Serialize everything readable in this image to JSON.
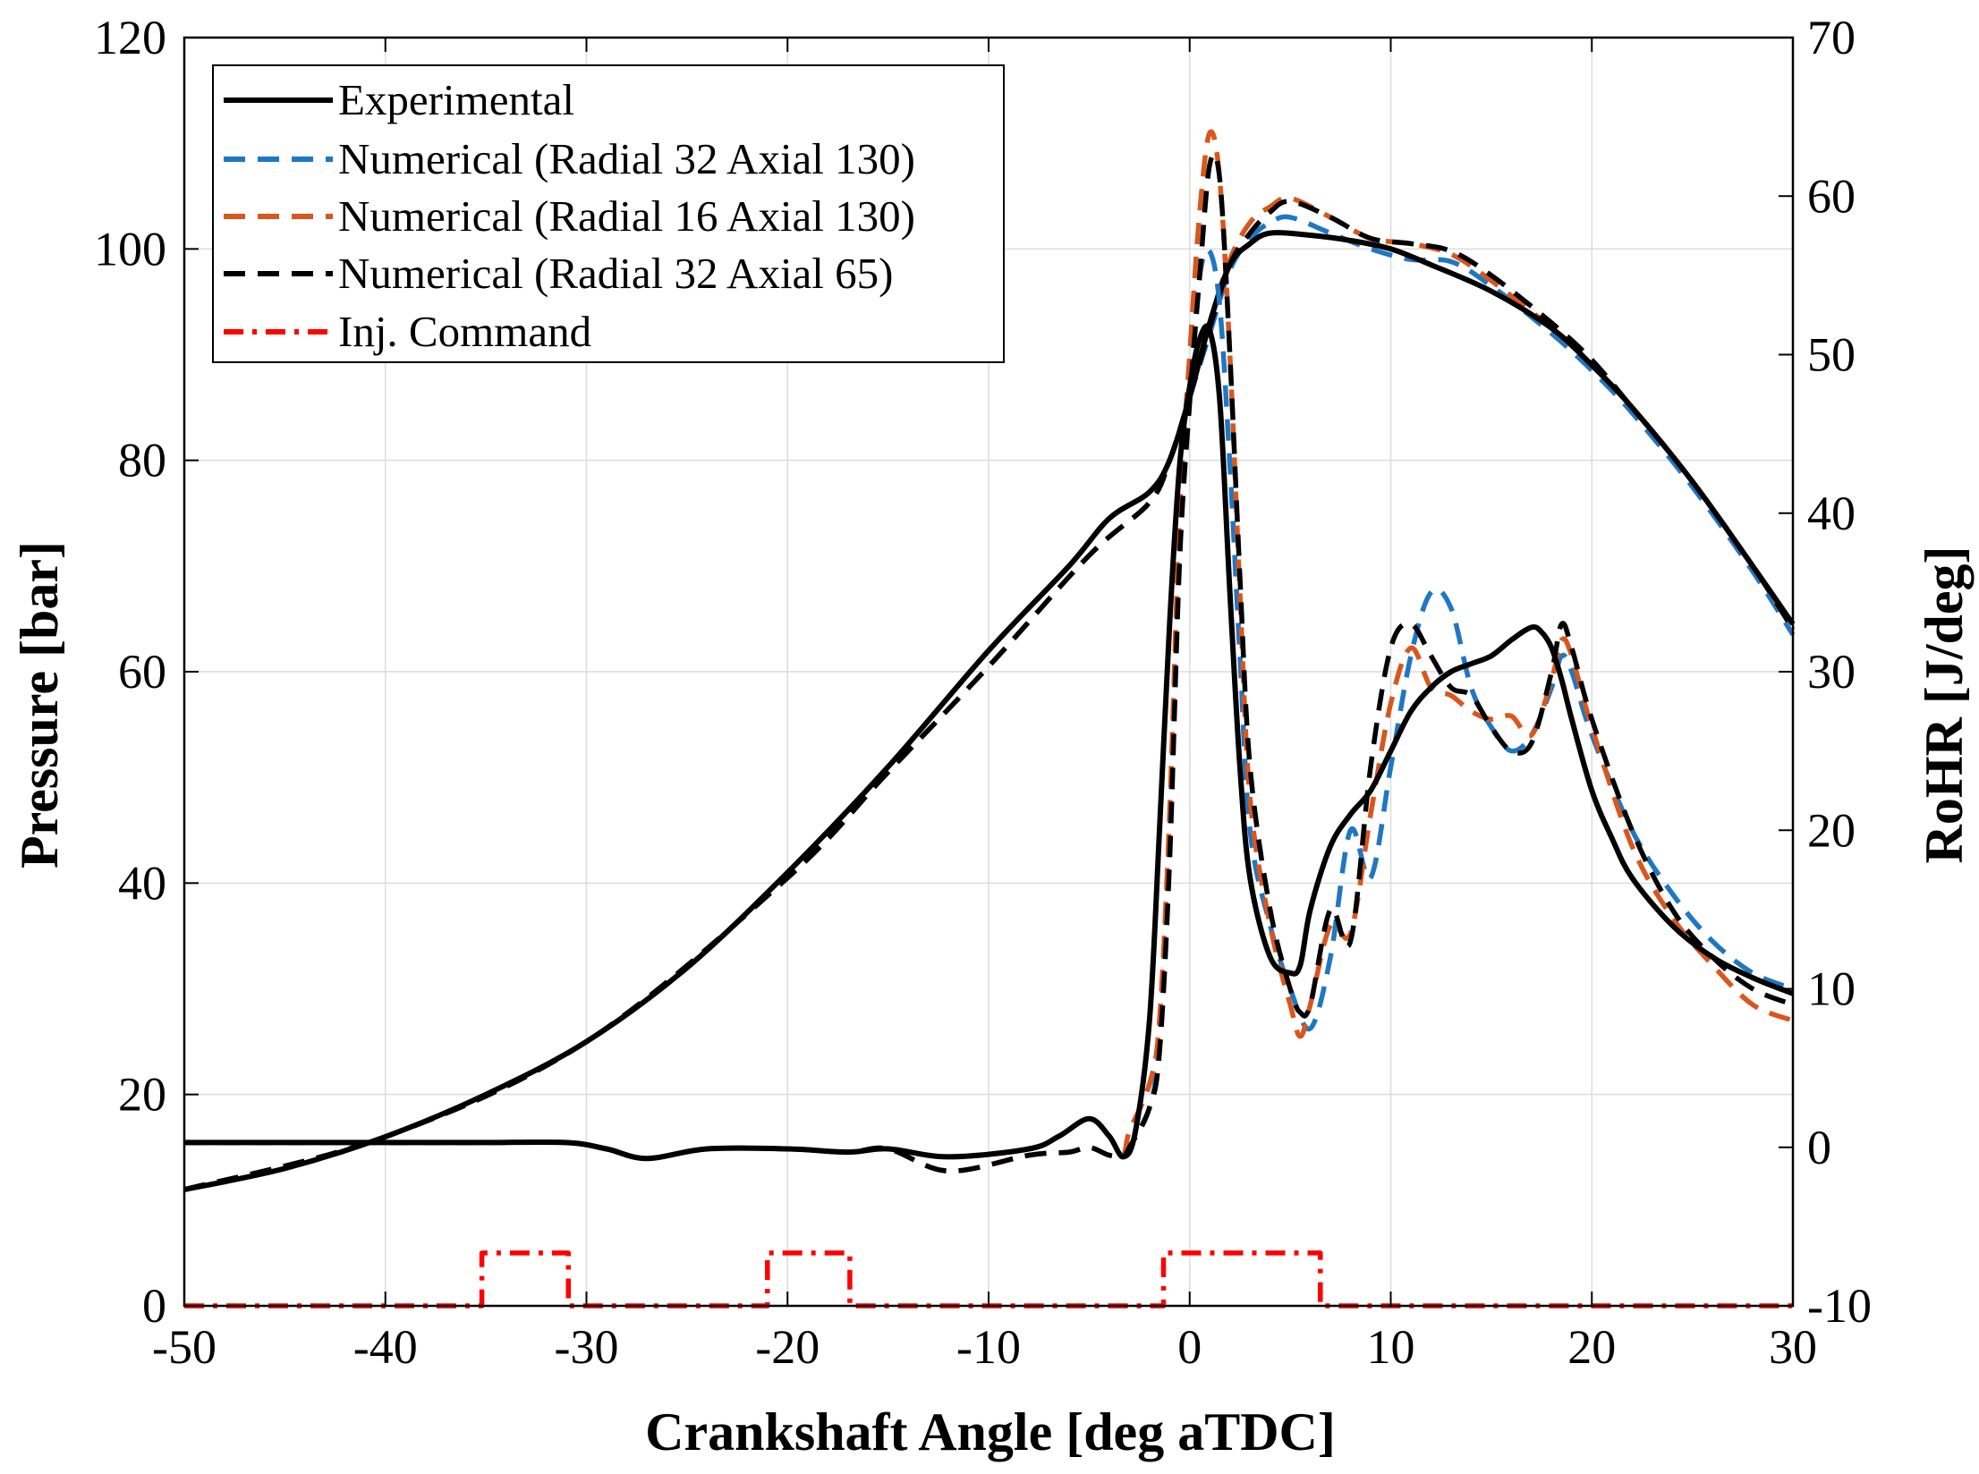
{
  "chart_data": {
    "type": "line",
    "xlabel": "Crankshaft Angle [deg aTDC]",
    "ylabel_left": "Pressure [bar]",
    "ylabel_right": "RoHR [J/deg]",
    "xlim": [
      -50,
      30
    ],
    "ylim_left": [
      0,
      120
    ],
    "ylim_right": [
      -10,
      70
    ],
    "xticks": [
      -50,
      -40,
      -30,
      -20,
      -10,
      0,
      10,
      20,
      30
    ],
    "yticks_left": [
      0,
      20,
      40,
      60,
      80,
      100,
      120
    ],
    "yticks_right": [
      -10,
      0,
      10,
      20,
      30,
      40,
      50,
      60,
      70
    ],
    "grid": true,
    "legend_position": "top-left",
    "legend": [
      {
        "label": "Experimental",
        "color": "#000000",
        "style": "solid"
      },
      {
        "label": "Numerical (Radial 32 Axial 130)",
        "color": "#1f77c4",
        "style": "dashed"
      },
      {
        "label": "Numerical (Radial 16 Axial 130)",
        "color": "#d9561c",
        "style": "dashed"
      },
      {
        "label": "Numerical (Radial 32 Axial 65)",
        "color": "#000000",
        "style": "dashed"
      },
      {
        "label": "Inj. Command",
        "color": "#ff0000",
        "style": "dashdot"
      }
    ],
    "series": [
      {
        "name": "Experimental",
        "kind": "pressure",
        "axis": "left",
        "color": "#000000",
        "style": "solid",
        "x": [
          -50,
          -45,
          -40,
          -35,
          -30,
          -25,
          -20,
          -15,
          -10,
          -6,
          -4,
          -2,
          -1,
          0,
          1,
          2,
          3,
          4,
          6,
          8,
          10,
          12,
          15,
          18,
          20,
          22,
          25,
          28,
          30
        ],
        "y": [
          11,
          13,
          16,
          20,
          25,
          32,
          41,
          51,
          62,
          70,
          74.5,
          77,
          80,
          86,
          93,
          98.5,
          100.5,
          101.5,
          101.3,
          100.8,
          100,
          98.5,
          96,
          92.5,
          89,
          85,
          78,
          70,
          64.5
        ]
      },
      {
        "name": "Numerical (Radial 32 Axial 130)",
        "kind": "pressure",
        "axis": "left",
        "color": "#1f77c4",
        "style": "dashed",
        "x": [
          -50,
          -40,
          -30,
          -20,
          -15,
          -10,
          -5,
          -2,
          -1,
          0,
          1,
          2,
          3,
          4,
          5,
          7,
          9,
          11,
          13,
          15,
          18,
          20,
          22,
          25,
          28,
          30
        ],
        "y": [
          11,
          16,
          25,
          40.5,
          50.5,
          60.5,
          71,
          76,
          80,
          86,
          92,
          98,
          101,
          102.5,
          103,
          101.5,
          100,
          99,
          98.8,
          96.5,
          92,
          88.5,
          84.5,
          77.5,
          69.5,
          63.5
        ]
      },
      {
        "name": "Numerical (Radial 16 Axial 130)",
        "kind": "pressure",
        "axis": "left",
        "color": "#d9561c",
        "style": "dashed",
        "x": [
          -50,
          -40,
          -30,
          -20,
          -15,
          -10,
          -5,
          -2,
          -1,
          0,
          1,
          2,
          3,
          4,
          5,
          7,
          9,
          11,
          13,
          15,
          18,
          20,
          22,
          25,
          28,
          30
        ],
        "y": [
          11,
          16,
          25,
          40.5,
          50.5,
          60.5,
          71,
          76,
          80,
          86,
          93,
          99,
          102.5,
          104,
          104.8,
          103,
          101,
          100.5,
          99.5,
          97,
          92.5,
          89,
          85,
          78,
          70,
          64
        ]
      },
      {
        "name": "Numerical (Radial 32 Axial 65)",
        "kind": "pressure",
        "axis": "left",
        "color": "#000000",
        "style": "dashed",
        "x": [
          -50,
          -40,
          -30,
          -20,
          -15,
          -10,
          -5,
          -2,
          -1,
          0,
          1,
          2,
          3,
          4,
          5,
          7,
          9,
          11,
          13,
          15,
          18,
          20,
          22,
          25,
          28,
          30
        ],
        "y": [
          11,
          16,
          25,
          40.5,
          50.5,
          60.5,
          71,
          76,
          80,
          86,
          92.5,
          98.5,
          101.5,
          103.5,
          104.5,
          103,
          101,
          100.5,
          99.8,
          97.5,
          93,
          89.5,
          85,
          78,
          70,
          64
        ]
      },
      {
        "name": "Experimental",
        "kind": "rohr",
        "axis": "right",
        "color": "#000000",
        "style": "solid",
        "x": [
          -50,
          -40,
          -35,
          -31,
          -29,
          -27,
          -24,
          -20,
          -17,
          -15,
          -12,
          -8,
          -6.5,
          -5,
          -4,
          -3.3,
          -2.7,
          -2,
          -1.5,
          -1,
          -0.5,
          0,
          0.5,
          1,
          1.5,
          2,
          2.5,
          3,
          4,
          5,
          5.5,
          6,
          7,
          8,
          9,
          10,
          11,
          12,
          13,
          14,
          15,
          16,
          17,
          17.5,
          18,
          18.5,
          19,
          20,
          21,
          22,
          24,
          26,
          28,
          30
        ],
        "y": [
          0.3,
          0.3,
          0.3,
          0.3,
          -0.1,
          -0.7,
          -0.1,
          -0.1,
          -0.3,
          -0.1,
          -0.6,
          -0.1,
          0.7,
          1.8,
          0.7,
          -0.6,
          1,
          8,
          20,
          33,
          43,
          48,
          51,
          51.5,
          47,
          35,
          24,
          17,
          12,
          11,
          11.5,
          15,
          19,
          21,
          22.5,
          25,
          27.5,
          29,
          30,
          30.5,
          31,
          32,
          32.8,
          32.5,
          31.5,
          29.5,
          27,
          22.5,
          19.5,
          17,
          14,
          12,
          10.7,
          9.7
        ]
      },
      {
        "name": "Numerical (Radial 32 Axial 130)",
        "kind": "rohr",
        "axis": "right",
        "color": "#1f77c4",
        "style": "dashed",
        "x": [
          -50,
          -40,
          -35,
          -31,
          -29,
          -27,
          -24,
          -20,
          -17,
          -15,
          -12,
          -8,
          -6,
          -5,
          -4,
          -3.3,
          -3,
          -2,
          -1.5,
          -1,
          -0.5,
          0,
          0.5,
          1,
          1.5,
          2,
          2.5,
          3,
          4,
          5,
          6,
          7,
          8,
          9,
          10,
          11,
          12,
          13,
          14,
          15,
          16,
          17,
          18,
          18.5,
          19,
          20,
          22,
          24,
          26,
          28,
          30
        ],
        "y": [
          0.3,
          0.3,
          0.3,
          0.3,
          -0.1,
          -0.7,
          -0.1,
          -0.1,
          -0.3,
          -0.1,
          -1.5,
          -0.5,
          -0.3,
          0,
          -0.5,
          -0.5,
          0,
          2.5,
          7,
          20,
          38,
          48,
          55,
          56.5,
          53,
          43,
          31,
          20,
          14,
          10,
          7.5,
          12,
          20,
          17,
          24,
          31,
          35,
          34,
          29,
          26.5,
          25,
          26,
          29,
          31,
          30,
          26,
          20,
          16,
          13,
          11,
          10
        ]
      },
      {
        "name": "Numerical (Radial 16 Axial 130)",
        "kind": "rohr",
        "axis": "right",
        "color": "#d9561c",
        "style": "dashed",
        "x": [
          -50,
          -40,
          -35,
          -31,
          -29,
          -27,
          -24,
          -20,
          -17,
          -15,
          -12,
          -8,
          -6,
          -5,
          -4,
          -3.3,
          -3,
          -2,
          -1.5,
          -1,
          -0.5,
          0,
          0.5,
          1,
          1.5,
          2,
          2.5,
          3,
          4,
          5,
          5.5,
          6,
          7,
          8,
          9,
          10,
          11,
          12,
          13,
          14,
          15,
          16,
          17,
          18,
          18.5,
          19,
          20,
          22,
          24,
          26,
          28,
          30
        ],
        "y": [
          0.3,
          0.3,
          0.3,
          0.3,
          -0.1,
          -0.7,
          -0.1,
          -0.1,
          -0.3,
          -0.1,
          -1.5,
          -0.5,
          -0.3,
          0,
          -0.5,
          -0.5,
          1,
          4,
          8,
          21,
          40,
          50,
          59,
          64,
          61,
          50,
          35,
          22,
          14,
          9,
          7,
          9,
          14,
          13.5,
          21,
          28,
          31.5,
          29,
          28.5,
          27.5,
          27,
          27.2,
          26,
          29.5,
          32,
          31,
          26.5,
          19,
          14.5,
          11.5,
          9,
          8
        ]
      },
      {
        "name": "Numerical (Radial 32 Axial 65)",
        "kind": "rohr",
        "axis": "right",
        "color": "#000000",
        "style": "dashed",
        "x": [
          -50,
          -40,
          -35,
          -31,
          -29,
          -27,
          -24,
          -20,
          -17,
          -15,
          -12,
          -8,
          -6,
          -5,
          -4,
          -3.3,
          -3,
          -2,
          -1.5,
          -1,
          -0.5,
          0,
          0.5,
          1,
          1.5,
          2,
          2.5,
          3,
          4,
          5,
          5.5,
          6,
          7,
          8,
          9,
          10,
          11,
          12,
          13,
          14,
          15,
          16,
          17,
          18,
          18.5,
          19,
          20,
          22,
          24,
          26,
          28,
          30
        ],
        "y": [
          0.3,
          0.3,
          0.3,
          0.3,
          -0.1,
          -0.7,
          -0.1,
          -0.1,
          -0.3,
          -0.1,
          -1.5,
          -0.5,
          -0.3,
          0,
          -0.5,
          -0.5,
          0,
          2.5,
          6,
          18,
          37,
          47,
          55,
          62,
          61,
          50,
          36,
          24,
          15,
          10,
          8.5,
          9,
          15,
          13,
          24,
          31.5,
          33,
          31,
          29,
          28.5,
          26.5,
          25,
          25.5,
          30,
          33,
          31.5,
          27,
          20,
          15,
          12,
          10,
          9
        ]
      },
      {
        "name": "Inj. Command",
        "kind": "injection",
        "axis": "left",
        "color": "#ff0000",
        "style": "dashdot",
        "x": [
          -50,
          -35.2,
          -35.2,
          -30.9,
          -30.9,
          -21,
          -21,
          -16.9,
          -16.9,
          -1.3,
          -1.3,
          6.5,
          6.5,
          30
        ],
        "y": [
          0,
          0,
          5,
          5,
          0,
          0,
          5,
          5,
          0,
          0,
          5,
          5,
          0,
          0
        ]
      }
    ]
  }
}
